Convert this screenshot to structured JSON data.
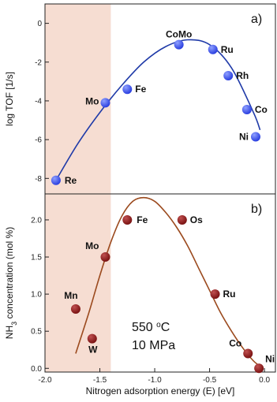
{
  "colors": {
    "shade": "#f6ddd2",
    "blue_curve": "#1f3aa8",
    "blue_marker": "#2a3fe0",
    "brown_curve": "#9b4a1e",
    "brown_marker": "#7a1212"
  },
  "shared_x": {
    "label": "Nitrogen adsorption energy (E) [eV]",
    "range": [
      -2.0,
      0.1
    ],
    "ticks": [
      -2.0,
      -1.5,
      -1.0,
      -0.5,
      0.0
    ],
    "tick_labels": [
      "-2.0",
      "-1.5",
      "-1.0",
      "-0.5",
      "0.0"
    ],
    "shaded_range": [
      -2.0,
      -1.4
    ]
  },
  "chart_data": [
    {
      "type": "scatter",
      "panel_tag": "a)",
      "ylabel": "log TOF [1/s]",
      "ylim": [
        -8.8,
        1.0
      ],
      "yticks": [
        0,
        -2,
        -4,
        -6,
        -8
      ],
      "ytick_labels": [
        "0",
        "-2",
        "-4",
        "-6",
        "-8"
      ],
      "points": [
        {
          "label": "Re",
          "x": -1.9,
          "y": -8.1
        },
        {
          "label": "Mo",
          "x": -1.45,
          "y": -4.1
        },
        {
          "label": "Fe",
          "x": -1.25,
          "y": -3.4
        },
        {
          "label": "CoMo",
          "x": -0.78,
          "y": -1.1
        },
        {
          "label": "Ru",
          "x": -0.47,
          "y": -1.35
        },
        {
          "label": "Rh",
          "x": -0.33,
          "y": -2.7
        },
        {
          "label": "Co",
          "x": -0.16,
          "y": -4.45
        },
        {
          "label": "Ni",
          "x": -0.08,
          "y": -5.85
        }
      ],
      "fit_curve": {
        "x": [
          -1.9,
          -1.7,
          -1.5,
          -1.3,
          -1.1,
          -0.9,
          -0.7,
          -0.5,
          -0.3,
          -0.1,
          -0.04
        ],
        "y": [
          -8.1,
          -6.2,
          -4.6,
          -3.2,
          -2.0,
          -1.2,
          -0.85,
          -1.1,
          -2.3,
          -4.6,
          -5.5
        ]
      }
    },
    {
      "type": "scatter",
      "panel_tag": "b)",
      "ylabel": "NH3 concentration (mol %)",
      "ylim": [
        -0.05,
        2.35
      ],
      "yticks": [
        0.0,
        0.5,
        1.0,
        1.5,
        2.0
      ],
      "ytick_labels": [
        "0.0",
        "0.5",
        "1.0",
        "1.5",
        "2.0"
      ],
      "annotation_temp": "550 oC",
      "annotation_pressure": "10 MPa",
      "points": [
        {
          "label": "Mn",
          "x": -1.72,
          "y": 0.8
        },
        {
          "label": "W",
          "x": -1.57,
          "y": 0.4
        },
        {
          "label": "Mo",
          "x": -1.45,
          "y": 1.5
        },
        {
          "label": "Fe",
          "x": -1.25,
          "y": 2.0
        },
        {
          "label": "Os",
          "x": -0.75,
          "y": 2.0
        },
        {
          "label": "Ru",
          "x": -0.45,
          "y": 1.0
        },
        {
          "label": "Co",
          "x": -0.15,
          "y": 0.2
        },
        {
          "label": "Ni",
          "x": -0.05,
          "y": 0.0
        }
      ],
      "fit_curve": {
        "x": [
          -1.72,
          -1.6,
          -1.5,
          -1.4,
          -1.3,
          -1.2,
          -1.1,
          -1.0,
          -0.9,
          -0.8,
          -0.7,
          -0.6,
          -0.5,
          -0.4,
          -0.3,
          -0.2,
          -0.1,
          -0.03
        ],
        "y": [
          0.2,
          0.75,
          1.25,
          1.7,
          2.05,
          2.25,
          2.3,
          2.25,
          2.1,
          1.9,
          1.65,
          1.35,
          1.05,
          0.75,
          0.5,
          0.28,
          0.1,
          0.02
        ]
      }
    }
  ]
}
